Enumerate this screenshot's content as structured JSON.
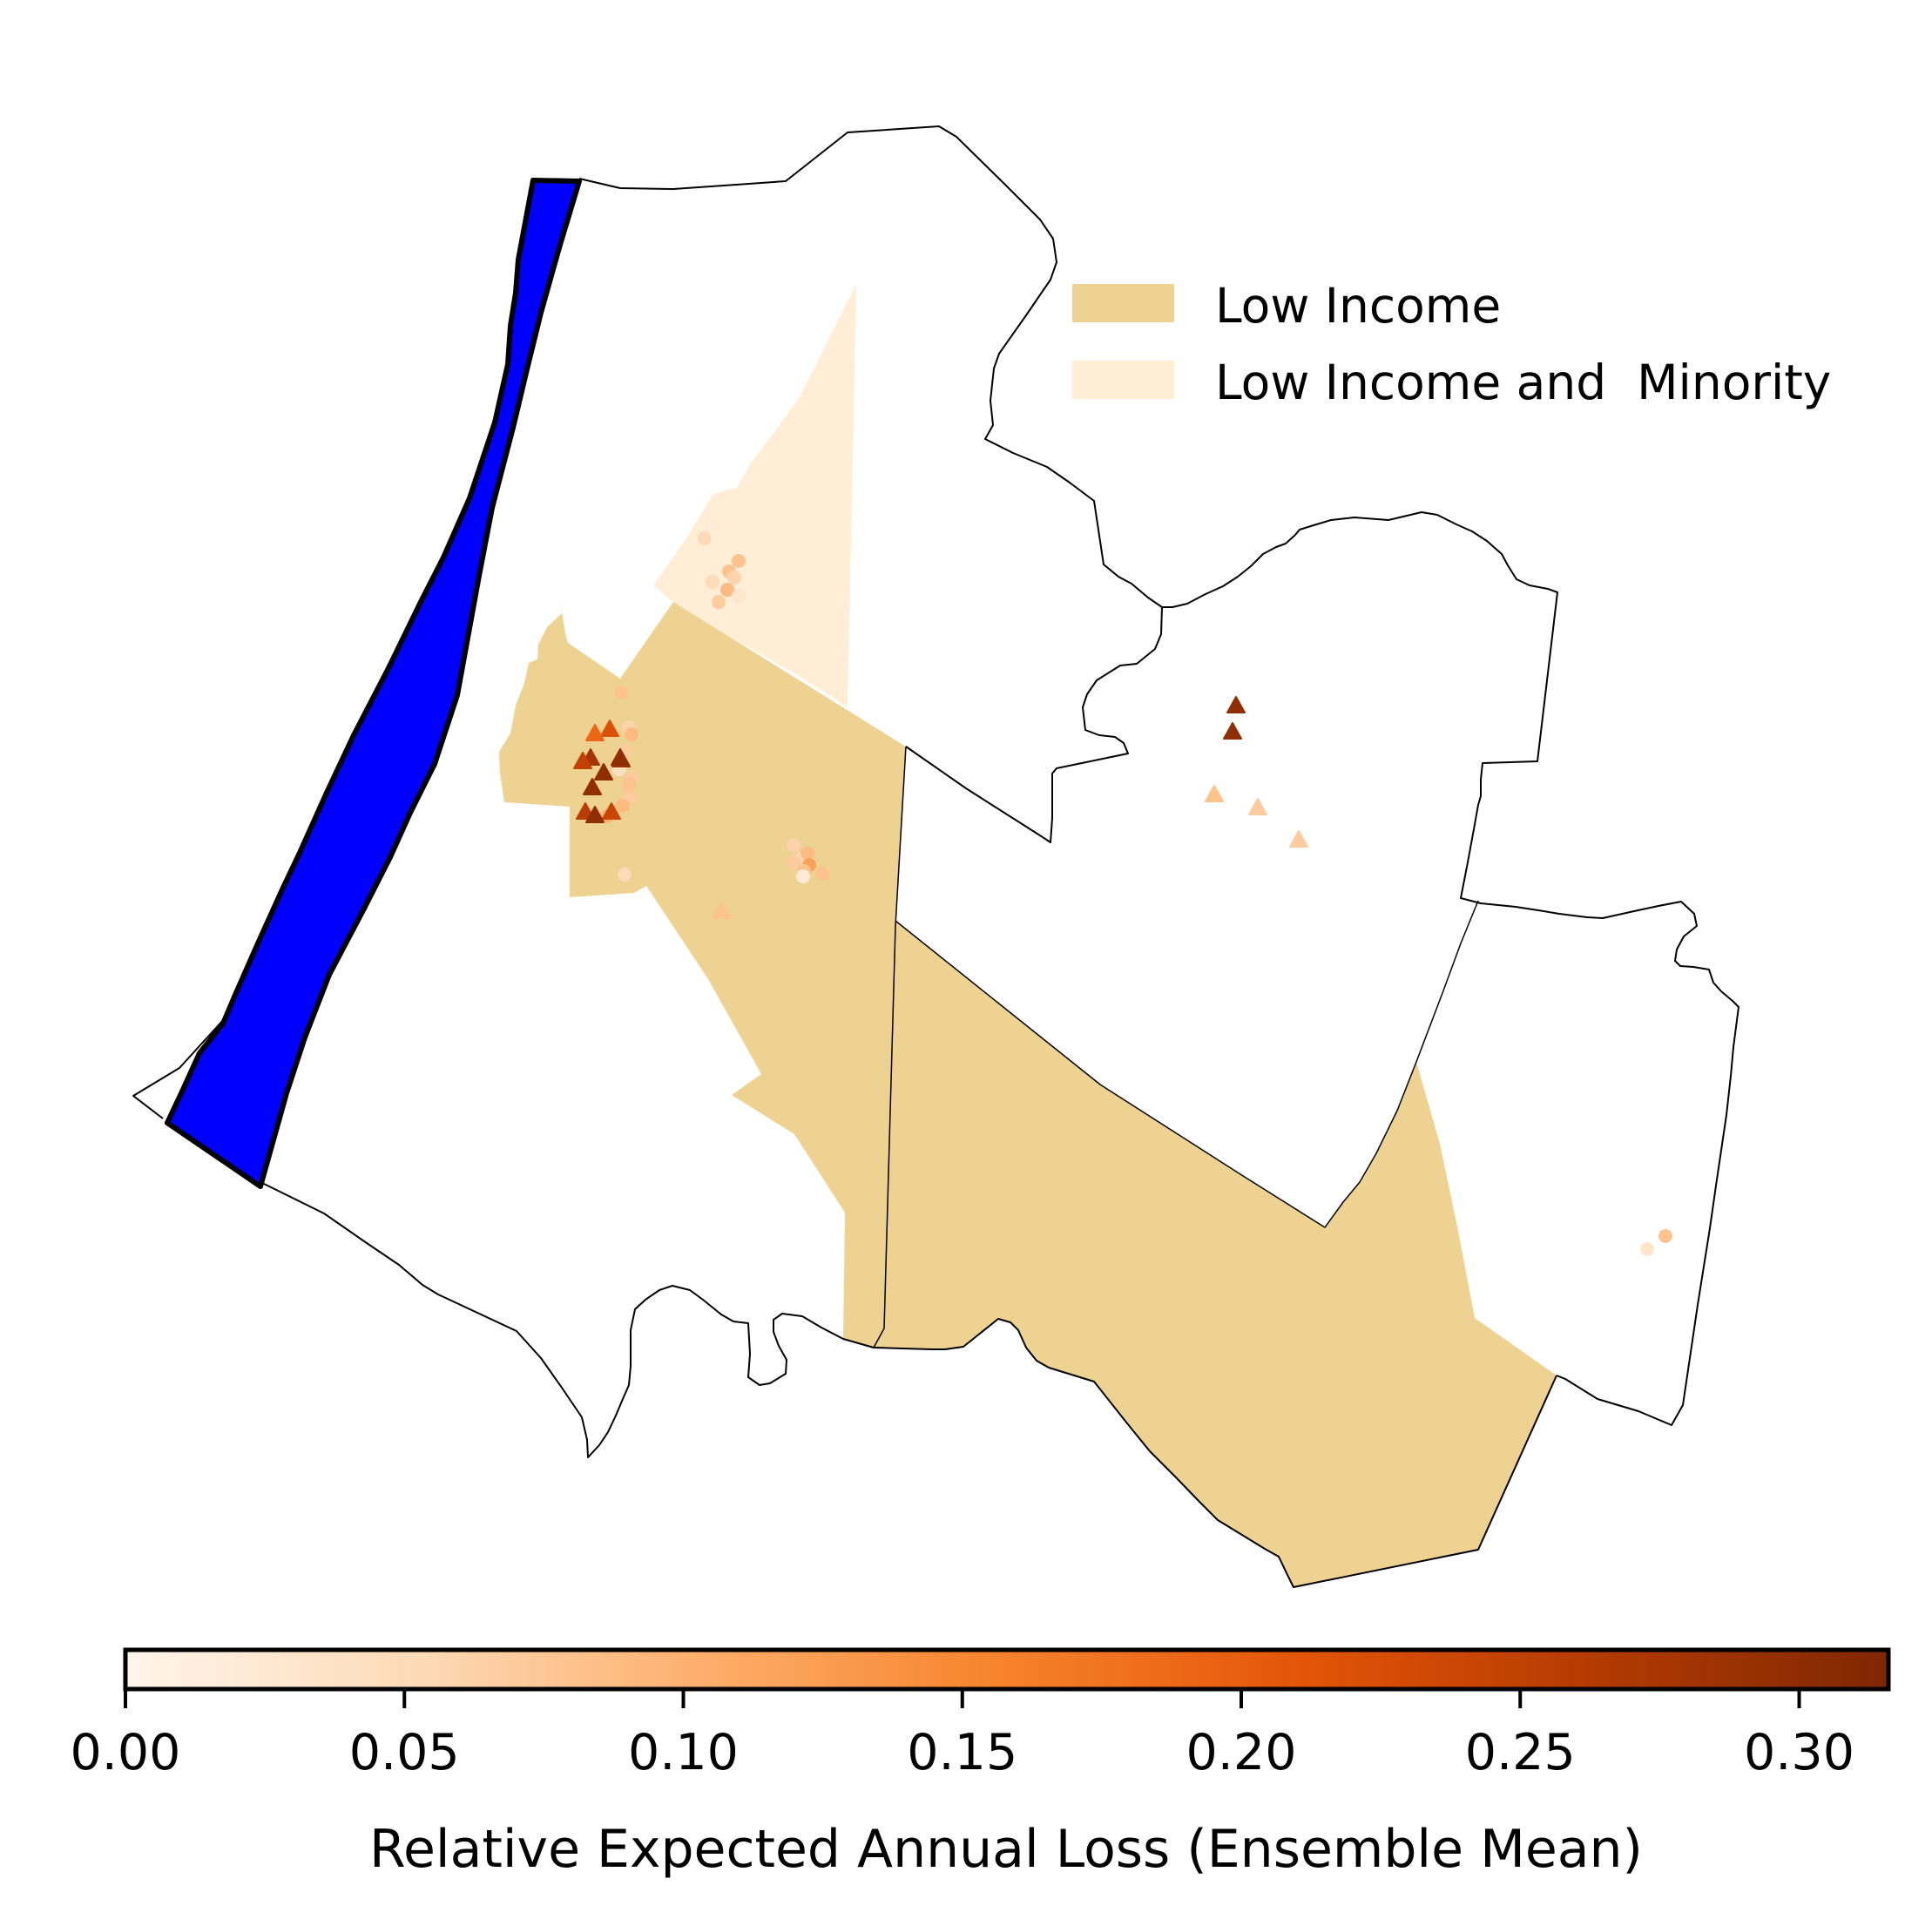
{
  "colors": {
    "low_income": "#EDD292",
    "low_income_and_minority": "#FFEDD6",
    "river": "#0000FF",
    "boundary": "#000000",
    "colormap_stops": [
      "#FFF5EB",
      "#FDD9B5",
      "#FDAE6B",
      "#F7822B",
      "#E35408",
      "#B53B02",
      "#7F2704"
    ]
  },
  "legend": {
    "items": [
      {
        "label": "Low Income",
        "color": "#EDD292"
      },
      {
        "label": "Low Income and  Minority",
        "color": "#FFEDD6"
      }
    ]
  },
  "colorbar": {
    "label": "Relative Expected Annual Loss (Ensemble Mean)",
    "min": 0.0,
    "max": 0.316,
    "ticks": [
      "0.00",
      "0.05",
      "0.10",
      "0.15",
      "0.20",
      "0.25",
      "0.30"
    ]
  },
  "markers": {
    "triangles": [
      0.3,
      0.3,
      0.08,
      0.07,
      0.07,
      0.28,
      0.25,
      0.29,
      0.22,
      0.19,
      0.3,
      0.3,
      0.3,
      0.26,
      0.24,
      0.3,
      0.08
    ],
    "circles": [
      0.02,
      0.05,
      0.08,
      0.08,
      0.06,
      0.05,
      0.09,
      0.07,
      0.03,
      0.08,
      0.06,
      0.09,
      0.07,
      0.04,
      0.07,
      0.08,
      0.07,
      0.09,
      0.1,
      0.06,
      0.05,
      0.07,
      0.09,
      0.12,
      0.08,
      0.08,
      0.02,
      0.08,
      0.03,
      0.05
    ]
  }
}
